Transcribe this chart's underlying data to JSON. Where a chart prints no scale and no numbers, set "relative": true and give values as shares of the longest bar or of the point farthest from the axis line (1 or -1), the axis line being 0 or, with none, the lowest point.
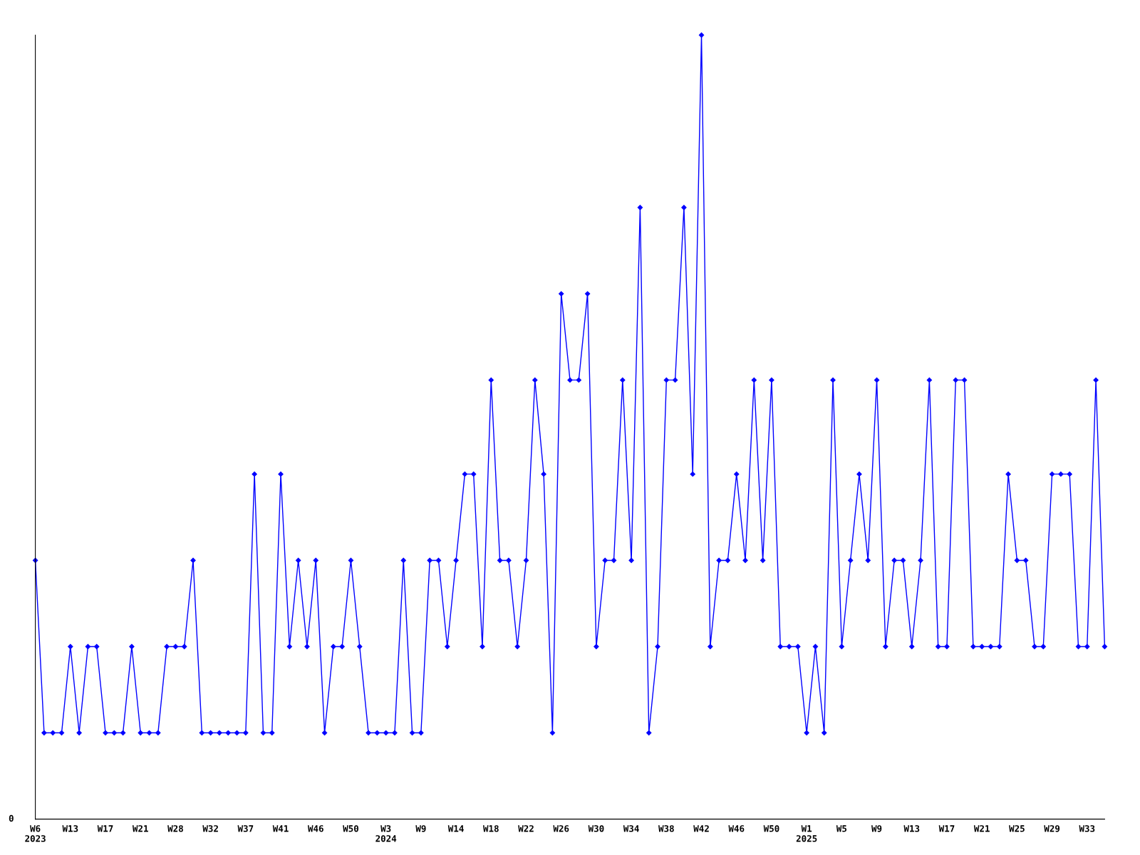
{
  "chart_data": {
    "type": "line",
    "relative": true,
    "marker": "diamond",
    "color": "#0000ff",
    "annotations": [
      "0"
    ],
    "categories": [
      "W6\n2023",
      null,
      null,
      null,
      "W13",
      null,
      null,
      null,
      "W17",
      null,
      null,
      null,
      "W21",
      null,
      null,
      null,
      "W28",
      null,
      null,
      null,
      "W32",
      null,
      null,
      null,
      "W37",
      null,
      null,
      null,
      "W41",
      null,
      null,
      null,
      "W46",
      null,
      null,
      null,
      "W50",
      null,
      null,
      null,
      "W3\n2024",
      null,
      null,
      null,
      "W9",
      null,
      null,
      null,
      "W14",
      null,
      null,
      null,
      "W18",
      null,
      null,
      null,
      "W22",
      null,
      null,
      null,
      "W26",
      null,
      null,
      null,
      "W30",
      null,
      null,
      null,
      "W34",
      null,
      null,
      null,
      "W38",
      null,
      null,
      null,
      "W42",
      null,
      null,
      null,
      "W46",
      null,
      null,
      null,
      "W50",
      null,
      null,
      null,
      "W1\n2025",
      null,
      null,
      null,
      "W5",
      null,
      null,
      null,
      "W9",
      null,
      null,
      null,
      "W13",
      null,
      null,
      null,
      "W17",
      null,
      null,
      null,
      "W21",
      null,
      null,
      null,
      "W25",
      null,
      null,
      null,
      "W29",
      null,
      null,
      null,
      "W33",
      null,
      null
    ],
    "values": [
      0.33,
      0.11,
      0.11,
      0.11,
      0.22,
      0.11,
      0.22,
      0.22,
      0.11,
      0.11,
      0.11,
      0.22,
      0.11,
      0.11,
      0.11,
      0.22,
      0.22,
      0.22,
      0.33,
      0.11,
      0.11,
      0.11,
      0.11,
      0.11,
      0.11,
      0.44,
      0.11,
      0.11,
      0.44,
      0.22,
      0.33,
      0.22,
      0.33,
      0.11,
      0.22,
      0.22,
      0.33,
      0.22,
      0.11,
      0.11,
      0.11,
      0.11,
      0.33,
      0.11,
      0.11,
      0.33,
      0.33,
      0.22,
      0.33,
      0.44,
      0.44,
      0.22,
      0.56,
      0.33,
      0.33,
      0.22,
      0.33,
      0.56,
      0.44,
      0.11,
      0.67,
      0.56,
      0.56,
      0.67,
      0.22,
      0.33,
      0.33,
      0.56,
      0.33,
      0.78,
      0.11,
      0.22,
      0.56,
      0.56,
      0.78,
      0.44,
      1,
      0.22,
      0.33,
      0.33,
      0.44,
      0.33,
      0.56,
      0.33,
      0.56,
      0.22,
      0.22,
      0.22,
      0.11,
      0.22,
      0.11,
      0.56,
      0.22,
      0.33,
      0.44,
      0.33,
      0.56,
      0.22,
      0.33,
      0.33,
      0.22,
      0.33,
      0.56,
      0.22,
      0.22,
      0.56,
      0.56,
      0.22,
      0.22,
      0.22,
      0.22,
      0.44,
      0.33,
      0.33,
      0.22,
      0.22,
      0.44,
      0.44,
      0.44,
      0.22,
      0.22,
      0.56,
      0.22
    ]
  }
}
